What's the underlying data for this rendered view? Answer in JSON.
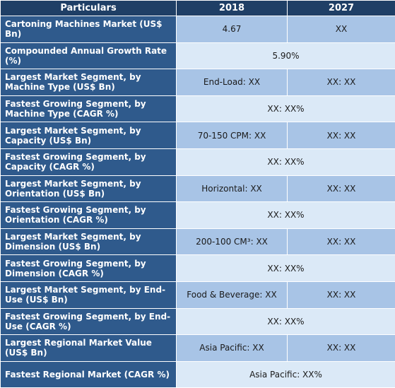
{
  "table": {
    "headers": [
      "Particulars",
      "2018",
      "2027"
    ],
    "rows": [
      {
        "label": "Cartoning Machines Market (US$ Bn)",
        "v2018": "4.67",
        "v2027": "XX"
      },
      {
        "label": "Compounded Annual Growth Rate (%)",
        "merged": "5.90%"
      },
      {
        "label": "Largest Market Segment, by Machine Type (US$ Bn)",
        "v2018": "End-Load: XX",
        "v2027": "XX: XX"
      },
      {
        "label": "Fastest Growing Segment, by Machine Type (CAGR %)",
        "merged": "XX: XX%"
      },
      {
        "label": "Largest Market Segment, by Capacity (US$ Bn)",
        "v2018": "70-150 CPM: XX",
        "v2027": "XX: XX"
      },
      {
        "label": "Fastest Growing Segment, by Capacity (CAGR %)",
        "merged": "XX: XX%"
      },
      {
        "label": "Largest Market Segment, by Orientation (US$ Bn)",
        "v2018": "Horizontal: XX",
        "v2027": "XX: XX"
      },
      {
        "label": "Fastest Growing Segment, by Orientation (CAGR %)",
        "merged": "XX: XX%"
      },
      {
        "label": "Largest Market Segment, by Dimension (US$ Bn)",
        "v2018": "200-100 CM³: XX",
        "v2027": "XX: XX"
      },
      {
        "label": "Fastest Growing Segment, by Dimension (CAGR %)",
        "merged": "XX: XX%"
      },
      {
        "label": "Largest Market Segment, by End-Use (US$ Bn)",
        "v2018": "Food & Beverage: XX",
        "v2027": "XX: XX"
      },
      {
        "label": "Fastest Growing Segment, by End-Use (CAGR %)",
        "merged": "XX: XX%"
      },
      {
        "label": "Largest Regional Market Value (US$ Bn)",
        "v2018": "Asia Pacific: XX",
        "v2027": "XX: XX"
      },
      {
        "label": "Fastest Regional Market (CAGR %)",
        "merged": "Asia Pacific: XX%"
      }
    ]
  }
}
